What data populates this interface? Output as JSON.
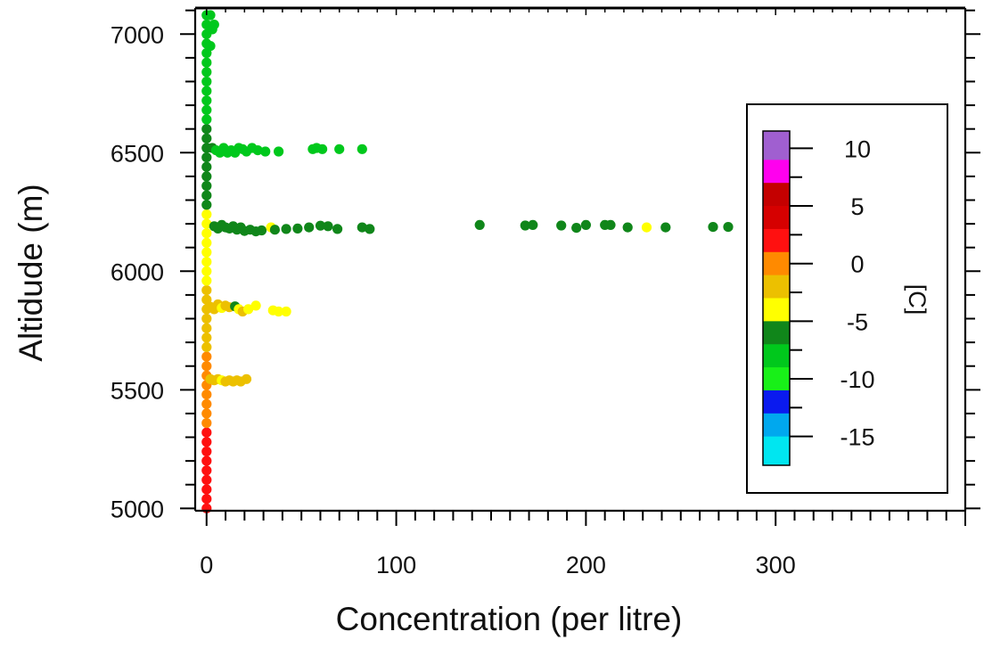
{
  "chart_data": {
    "type": "scatter",
    "title": "",
    "xlabel": "Concentration (per litre)",
    "ylabel": "Altidude (m)",
    "xlim": [
      -6,
      400
    ],
    "ylim": [
      4990,
      7110
    ],
    "x_ticks": [
      "0",
      "100",
      "200",
      "300"
    ],
    "y_ticks": [
      "5000",
      "5500",
      "6000",
      "6500",
      "7000"
    ],
    "grid": false,
    "colorbar": {
      "label": "[C]",
      "ticks": [
        "10",
        "5",
        "0",
        "-5",
        "-10",
        "-15"
      ],
      "tick_values": [
        10,
        5,
        0,
        -5,
        -10,
        -15
      ],
      "range": [
        -17.5,
        11.5
      ],
      "bands": [
        {
          "from": 9,
          "to": 11.5,
          "color": "#a05fd0"
        },
        {
          "from": 7,
          "to": 9,
          "color": "#ff00ee"
        },
        {
          "from": 5,
          "to": 7,
          "color": "#c40000"
        },
        {
          "from": 3,
          "to": 5,
          "color": "#d60000"
        },
        {
          "from": 1,
          "to": 3,
          "color": "#ff1010"
        },
        {
          "from": -1,
          "to": 1,
          "color": "#ff8a00"
        },
        {
          "from": -3,
          "to": -1,
          "color": "#ecc000"
        },
        {
          "from": -5,
          "to": -3,
          "color": "#ffff00"
        },
        {
          "from": -7,
          "to": -5,
          "color": "#10861a"
        },
        {
          "from": -9,
          "to": -7,
          "color": "#00c81c"
        },
        {
          "from": -11,
          "to": -9,
          "color": "#18f018"
        },
        {
          "from": -13,
          "to": -11,
          "color": "#0a1aef"
        },
        {
          "from": -15,
          "to": -13,
          "color": "#00a8ee"
        },
        {
          "from": -17.5,
          "to": -15,
          "color": "#00e6f0"
        }
      ]
    },
    "series": [
      {
        "points": [
          [
            0,
            5000,
            2
          ],
          [
            0,
            5040,
            2
          ],
          [
            0,
            5080,
            2
          ],
          [
            0,
            5120,
            2
          ],
          [
            0,
            5160,
            2
          ],
          [
            0,
            5200,
            2
          ],
          [
            0,
            5240,
            2
          ],
          [
            0,
            5280,
            2
          ],
          [
            0,
            5320,
            2
          ],
          [
            0,
            5360,
            0
          ],
          [
            0,
            5400,
            0
          ],
          [
            0,
            5440,
            0
          ],
          [
            0,
            5480,
            0
          ],
          [
            0,
            5520,
            0
          ],
          [
            0,
            5560,
            0
          ],
          [
            0,
            5600,
            0
          ],
          [
            0,
            5640,
            0
          ],
          [
            0,
            5680,
            -2
          ],
          [
            0,
            5720,
            -2
          ],
          [
            0,
            5760,
            -2
          ],
          [
            0,
            5800,
            -2
          ],
          [
            0,
            5840,
            -2
          ],
          [
            0,
            5880,
            -2
          ],
          [
            0,
            5920,
            -2
          ],
          [
            0,
            5960,
            -4
          ],
          [
            0,
            6000,
            -4
          ],
          [
            0,
            6040,
            -4
          ],
          [
            0,
            6080,
            -4
          ],
          [
            0,
            6120,
            -4
          ],
          [
            0,
            6160,
            -4
          ],
          [
            0,
            6200,
            -4
          ],
          [
            0,
            6240,
            -4
          ],
          [
            0,
            6280,
            -6
          ],
          [
            0,
            6320,
            -6
          ],
          [
            0,
            6360,
            -6
          ],
          [
            0,
            6400,
            -6
          ],
          [
            0,
            6440,
            -6
          ],
          [
            0,
            6480,
            -6
          ],
          [
            0,
            6520,
            -6
          ],
          [
            0,
            6560,
            -6
          ],
          [
            0,
            6600,
            -6
          ],
          [
            0,
            6640,
            -8
          ],
          [
            0,
            6680,
            -8
          ],
          [
            0,
            6720,
            -8
          ],
          [
            0,
            6760,
            -8
          ],
          [
            0,
            6800,
            -8
          ],
          [
            0,
            6840,
            -8
          ],
          [
            0,
            6880,
            -8
          ],
          [
            0,
            6920,
            -8
          ],
          [
            0,
            6960,
            -8
          ],
          [
            0,
            7000,
            -8
          ],
          [
            0,
            7040,
            -8
          ],
          [
            0,
            7080,
            -8
          ],
          [
            2,
            6950,
            -8
          ],
          [
            3,
            7020,
            -8
          ],
          [
            4,
            7040,
            -8
          ],
          [
            2,
            7080,
            -8
          ],
          [
            3,
            6520,
            -7
          ],
          [
            5,
            6510,
            -8
          ],
          [
            7,
            6500,
            -8
          ],
          [
            9,
            6520,
            -8
          ],
          [
            11,
            6500,
            -8
          ],
          [
            13,
            6510,
            -8
          ],
          [
            15,
            6500,
            -8
          ],
          [
            17,
            6520,
            -8
          ],
          [
            19,
            6515,
            -8
          ],
          [
            21,
            6505,
            -8
          ],
          [
            24,
            6520,
            -8
          ],
          [
            27,
            6510,
            -8
          ],
          [
            31,
            6505,
            -8
          ],
          [
            38,
            6505,
            -8
          ],
          [
            56,
            6515,
            -8
          ],
          [
            58,
            6520,
            -8
          ],
          [
            61,
            6515,
            -8
          ],
          [
            70,
            6515,
            -8
          ],
          [
            82,
            6515,
            -8
          ],
          [
            4,
            6190,
            -6
          ],
          [
            6,
            6180,
            -6
          ],
          [
            8,
            6195,
            -6
          ],
          [
            10,
            6185,
            -6
          ],
          [
            12,
            6180,
            -6
          ],
          [
            14,
            6190,
            -6
          ],
          [
            16,
            6175,
            -6
          ],
          [
            18,
            6185,
            -6
          ],
          [
            20,
            6170,
            -6
          ],
          [
            23,
            6175,
            -6
          ],
          [
            26,
            6168,
            -6
          ],
          [
            29,
            6172,
            -6
          ],
          [
            34,
            6185,
            -4
          ],
          [
            36,
            6175,
            -6
          ],
          [
            42,
            6178,
            -6
          ],
          [
            48,
            6180,
            -6
          ],
          [
            54,
            6185,
            -6
          ],
          [
            60,
            6192,
            -6
          ],
          [
            64,
            6190,
            -6
          ],
          [
            69,
            6178,
            -6
          ],
          [
            82,
            6185,
            -6
          ],
          [
            86,
            6178,
            -6
          ],
          [
            144,
            6195,
            -6
          ],
          [
            168,
            6193,
            -6
          ],
          [
            172,
            6195,
            -6
          ],
          [
            187,
            6193,
            -6
          ],
          [
            195,
            6183,
            -6
          ],
          [
            200,
            6195,
            -6
          ],
          [
            210,
            6195,
            -6
          ],
          [
            213,
            6195,
            -6
          ],
          [
            222,
            6185,
            -6
          ],
          [
            232,
            6185,
            -4
          ],
          [
            242,
            6185,
            -6
          ],
          [
            267,
            6187,
            -6
          ],
          [
            275,
            6187,
            -6
          ],
          [
            2,
            5850,
            -3
          ],
          [
            4,
            5840,
            -3
          ],
          [
            6,
            5860,
            -3
          ],
          [
            8,
            5845,
            -4
          ],
          [
            10,
            5855,
            -3
          ],
          [
            12,
            5848,
            -3
          ],
          [
            15,
            5852,
            -6
          ],
          [
            17,
            5840,
            -4
          ],
          [
            19,
            5830,
            -3
          ],
          [
            22,
            5840,
            -4
          ],
          [
            26,
            5855,
            -4
          ],
          [
            35,
            5835,
            -4
          ],
          [
            38,
            5830,
            -4
          ],
          [
            42,
            5830,
            -4
          ],
          [
            2,
            5545,
            -3
          ],
          [
            4,
            5540,
            -3
          ],
          [
            6,
            5545,
            -3
          ],
          [
            8,
            5540,
            -4
          ],
          [
            10,
            5535,
            -3
          ],
          [
            12,
            5540,
            -3
          ],
          [
            14,
            5535,
            -3
          ],
          [
            16,
            5540,
            -3
          ],
          [
            18,
            5535,
            -3
          ],
          [
            21,
            5545,
            -3
          ]
        ]
      }
    ]
  }
}
